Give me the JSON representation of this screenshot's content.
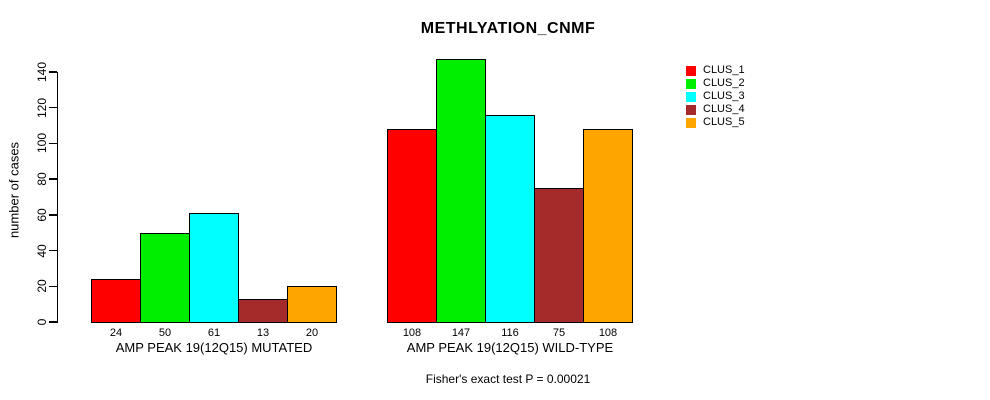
{
  "title": "METHLYATION_CNMF",
  "footer_note": "Fisher's exact test P = 0.00021",
  "chart_data": {
    "type": "bar",
    "title": "METHLYATION_CNMF",
    "xlabel": "",
    "ylabel": "number of cases",
    "ylim": [
      0,
      140
    ],
    "yticks": [
      0,
      20,
      40,
      60,
      80,
      100,
      120,
      140
    ],
    "grid": false,
    "legend_position": "top-right",
    "categories": [
      "AMP PEAK 19(12Q15) MUTATED",
      "AMP PEAK 19(12Q15) WILD-TYPE"
    ],
    "series": [
      {
        "name": "CLUS_1",
        "color": "#FF0000",
        "values": [
          24,
          108
        ]
      },
      {
        "name": "CLUS_2",
        "color": "#00EE00",
        "values": [
          50,
          147
        ]
      },
      {
        "name": "CLUS_3",
        "color": "#00FFFF",
        "values": [
          61,
          116
        ]
      },
      {
        "name": "CLUS_4",
        "color": "#A52A2A",
        "values": [
          13,
          75
        ]
      },
      {
        "name": "CLUS_5",
        "color": "#FFA500",
        "values": [
          20,
          108
        ]
      }
    ],
    "bar_value_labels_shown": true,
    "annotation": "Fisher's exact test P = 0.00021"
  }
}
